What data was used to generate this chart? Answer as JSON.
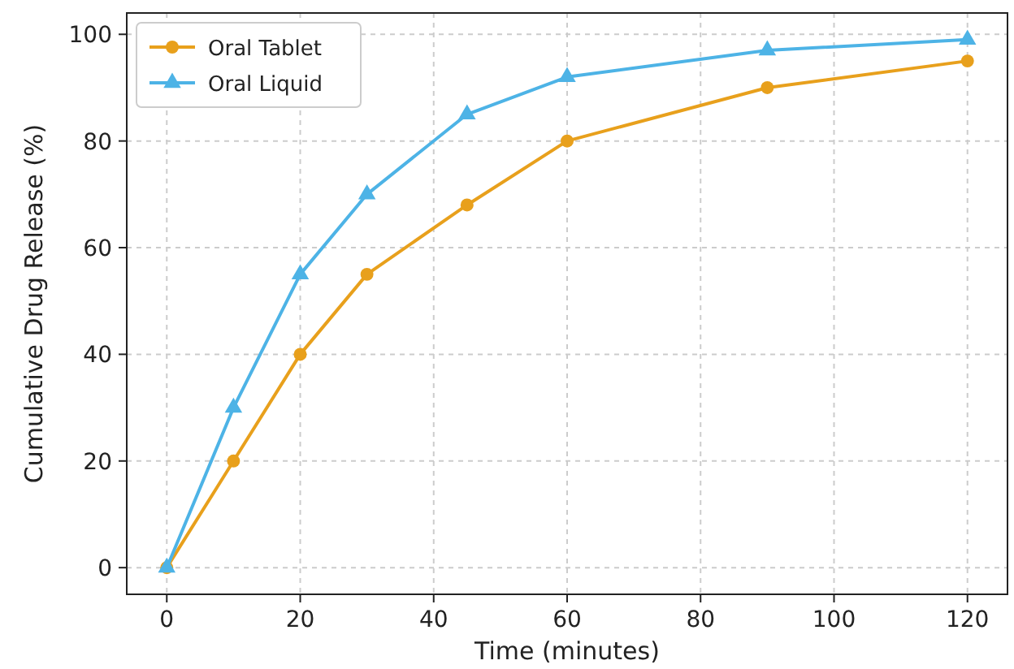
{
  "chart_data": {
    "type": "line",
    "xlabel": "Time (minutes)",
    "ylabel": "Cumulative Drug Release (%)",
    "x": [
      0,
      10,
      20,
      30,
      45,
      60,
      90,
      120
    ],
    "series": [
      {
        "name": "Oral Tablet",
        "color": "#e8a01c",
        "marker": "circle",
        "values": [
          0,
          20,
          40,
          55,
          68,
          80,
          90,
          95
        ]
      },
      {
        "name": "Oral Liquid",
        "color": "#4db3e6",
        "marker": "triangle",
        "values": [
          0,
          30,
          55,
          70,
          85,
          92,
          97,
          99
        ]
      }
    ],
    "xlim": [
      -6,
      126
    ],
    "xticks": [
      0,
      20,
      40,
      60,
      80,
      100,
      120
    ],
    "ylim": [
      -5,
      104
    ],
    "yticks": [
      0,
      20,
      40,
      60,
      80,
      100
    ],
    "grid": true,
    "legend": "top left",
    "line_style": "solid"
  }
}
